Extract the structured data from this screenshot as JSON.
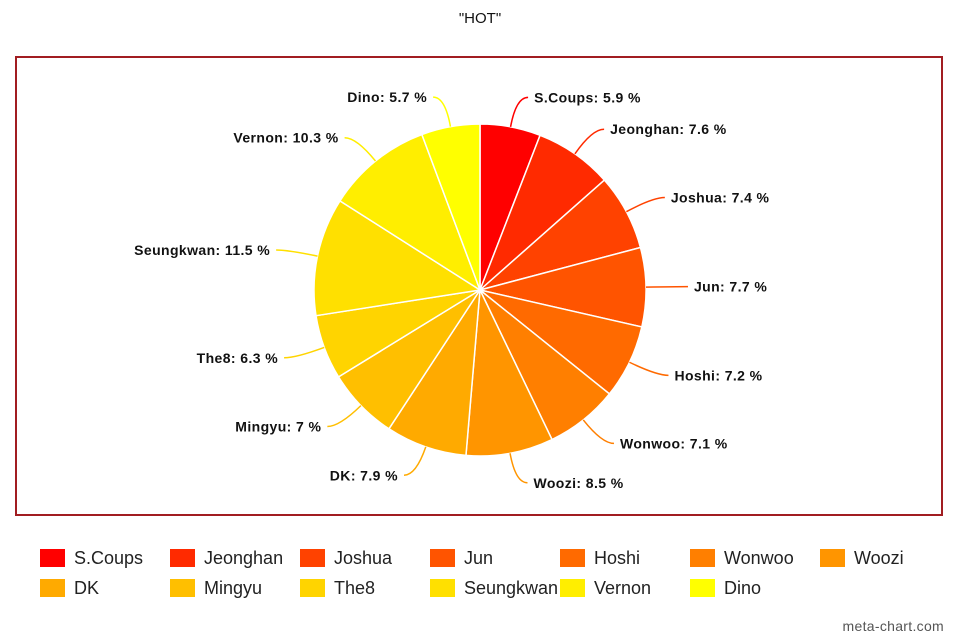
{
  "chart_data": {
    "type": "pie",
    "title": "\"HOT\"",
    "categories": [
      "S.Coups",
      "Jeonghan",
      "Joshua",
      "Jun",
      "Hoshi",
      "Wonwoo",
      "Woozi",
      "DK",
      "Mingyu",
      "The8",
      "Seungkwan",
      "Vernon",
      "Dino"
    ],
    "values": [
      5.9,
      7.6,
      7.4,
      7.7,
      7.2,
      7.1,
      8.5,
      7.9,
      7,
      6.3,
      11.5,
      10.3,
      5.7
    ],
    "labels": [
      "S.Coups: 5.9 %",
      "Jeonghan: 7.6 %",
      "Joshua: 7.4 %",
      "Jun: 7.7 %",
      "Hoshi: 7.2 %",
      "Wonwoo: 7.1 %",
      "Woozi: 8.5 %",
      "DK: 7.9 %",
      "Mingyu: 7 %",
      "The8: 6.3 %",
      "Seungkwan: 11.5 %",
      "Vernon: 10.3 %",
      "Dino: 5.7 %"
    ],
    "colors": [
      "#ff0000",
      "#ff2a00",
      "#ff4200",
      "#ff5400",
      "#ff6a00",
      "#ff7f00",
      "#ff9500",
      "#ffaa00",
      "#ffbf00",
      "#ffd400",
      "#ffe000",
      "#ffee00",
      "#ffff00"
    ],
    "legend_position": "bottom"
  },
  "watermark": "meta-chart.com"
}
